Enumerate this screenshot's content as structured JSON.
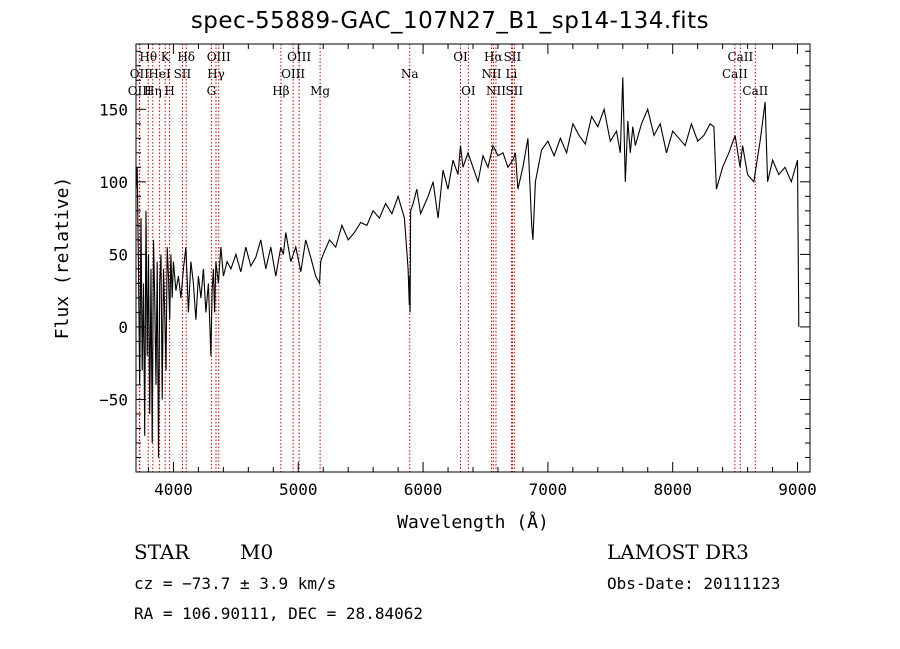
{
  "chart_data": {
    "type": "line",
    "title": "spec-55889-GAC_107N27_B1_sp14-134.fits",
    "xlabel": "Wavelength (Å)",
    "ylabel": "Flux (relative)",
    "xlim": [
      3700,
      9100
    ],
    "ylim": [
      -100,
      195
    ],
    "xticks": [
      4000,
      5000,
      6000,
      7000,
      8000,
      9000
    ],
    "yticks": [
      -50,
      0,
      50,
      100,
      150
    ],
    "ytick_labels": [
      "−50",
      "0",
      "50",
      "100",
      "150"
    ],
    "grid": false,
    "series": [
      {
        "name": "flux",
        "x": [
          3700,
          3710,
          3720,
          3730,
          3740,
          3750,
          3760,
          3770,
          3780,
          3790,
          3800,
          3810,
          3820,
          3830,
          3840,
          3850,
          3860,
          3870,
          3880,
          3890,
          3900,
          3910,
          3920,
          3930,
          3940,
          3950,
          3960,
          3970,
          3980,
          3990,
          4000,
          4020,
          4040,
          4060,
          4080,
          4100,
          4120,
          4140,
          4160,
          4180,
          4200,
          4220,
          4240,
          4260,
          4280,
          4300,
          4310,
          4320,
          4330,
          4340,
          4360,
          4380,
          4400,
          4430,
          4460,
          4500,
          4540,
          4580,
          4620,
          4660,
          4700,
          4740,
          4780,
          4820,
          4860,
          4880,
          4900,
          4940,
          4980,
          5020,
          5060,
          5100,
          5140,
          5170,
          5180,
          5200,
          5250,
          5300,
          5350,
          5400,
          5450,
          5500,
          5550,
          5600,
          5650,
          5700,
          5750,
          5800,
          5850,
          5880,
          5890,
          5893,
          5896,
          5900,
          5920,
          5950,
          5980,
          6000,
          6040,
          6080,
          6120,
          6160,
          6200,
          6240,
          6280,
          6300,
          6320,
          6360,
          6400,
          6440,
          6480,
          6520,
          6560,
          6600,
          6640,
          6680,
          6720,
          6740,
          6760,
          6800,
          6840,
          6870,
          6880,
          6900,
          6950,
          7000,
          7050,
          7100,
          7150,
          7200,
          7250,
          7300,
          7350,
          7400,
          7450,
          7500,
          7550,
          7580,
          7600,
          7620,
          7640,
          7660,
          7680,
          7700,
          7750,
          7800,
          7850,
          7900,
          7950,
          8000,
          8050,
          8100,
          8150,
          8200,
          8250,
          8300,
          8330,
          8350,
          8400,
          8450,
          8500,
          8540,
          8560,
          8600,
          8650,
          8700,
          8740,
          8760,
          8800,
          8850,
          8900,
          8950,
          9000,
          9010
        ],
        "y": [
          95,
          110,
          40,
          -40,
          75,
          -30,
          30,
          -75,
          80,
          -20,
          50,
          -60,
          40,
          -80,
          60,
          20,
          -40,
          45,
          -90,
          30,
          50,
          -50,
          40,
          10,
          -30,
          55,
          35,
          5,
          50,
          20,
          45,
          25,
          35,
          20,
          40,
          55,
          10,
          45,
          30,
          5,
          35,
          20,
          40,
          10,
          30,
          -20,
          25,
          40,
          10,
          45,
          30,
          55,
          35,
          45,
          40,
          50,
          38,
          55,
          42,
          48,
          60,
          40,
          55,
          35,
          55,
          50,
          65,
          45,
          55,
          38,
          60,
          48,
          35,
          30,
          45,
          50,
          60,
          55,
          70,
          60,
          65,
          72,
          70,
          80,
          75,
          85,
          78,
          90,
          75,
          40,
          15,
          35,
          10,
          80,
          85,
          95,
          78,
          82,
          90,
          100,
          75,
          108,
          95,
          115,
          105,
          125,
          110,
          120,
          110,
          100,
          118,
          110,
          125,
          118,
          120,
          110,
          115,
          120,
          95,
          110,
          130,
          70,
          60,
          100,
          122,
          128,
          118,
          130,
          120,
          140,
          132,
          126,
          145,
          138,
          150,
          128,
          135,
          120,
          172,
          100,
          142,
          120,
          138,
          125,
          140,
          150,
          132,
          140,
          120,
          135,
          130,
          125,
          140,
          128,
          132,
          140,
          138,
          95,
          110,
          120,
          132,
          110,
          125,
          105,
          100,
          128,
          155,
          100,
          115,
          105,
          110,
          100,
          115,
          0
        ]
      }
    ],
    "line_ids": [
      {
        "label": "Hθ",
        "wavelength": 3798,
        "row": 1
      },
      {
        "label": "OII",
        "wavelength": 3727,
        "row": 2
      },
      {
        "label": "OIII",
        "wavelength": 3730,
        "row": 3
      },
      {
        "label": "K",
        "wavelength": 3934,
        "row": 1
      },
      {
        "label": "HeI",
        "wavelength": 3889,
        "row": 2
      },
      {
        "label": "Hη",
        "wavelength": 3835,
        "row": 3
      },
      {
        "label": "Hδ",
        "wavelength": 4102,
        "row": 1
      },
      {
        "label": "SII",
        "wavelength": 4072,
        "row": 2
      },
      {
        "label": "H",
        "wavelength": 3969,
        "row": 3
      },
      {
        "label": "OIII",
        "wavelength": 4363,
        "row": 1
      },
      {
        "label": "Hγ",
        "wavelength": 4341,
        "row": 2
      },
      {
        "label": "G",
        "wavelength": 4304,
        "row": 3
      },
      {
        "label": "OIII",
        "wavelength": 5007,
        "row": 1
      },
      {
        "label": "OIII",
        "wavelength": 4959,
        "row": 2
      },
      {
        "label": "Hβ",
        "wavelength": 4861,
        "row": 3
      },
      {
        "label": "Mg",
        "wavelength": 5175,
        "row": 3
      },
      {
        "label": "Na",
        "wavelength": 5893,
        "row": 2
      },
      {
        "label": "OI",
        "wavelength": 6300,
        "row": 1
      },
      {
        "label": "OI",
        "wavelength": 6363,
        "row": 3
      },
      {
        "label": "Hα",
        "wavelength": 6563,
        "row": 1
      },
      {
        "label": "SII",
        "wavelength": 6716,
        "row": 1
      },
      {
        "label": "NII",
        "wavelength": 6548,
        "row": 2
      },
      {
        "label": "Li",
        "wavelength": 6708,
        "row": 2
      },
      {
        "label": "NII",
        "wavelength": 6584,
        "row": 3
      },
      {
        "label": "SII",
        "wavelength": 6731,
        "row": 3
      },
      {
        "label": "CaII",
        "wavelength": 8542,
        "row": 1
      },
      {
        "label": "CaII",
        "wavelength": 8498,
        "row": 2
      },
      {
        "label": "CaII",
        "wavelength": 8662,
        "row": 3
      }
    ],
    "line_marker_color": "#c00000",
    "line_color": "#000000"
  },
  "info": {
    "object_class": "STAR",
    "subclass": "M0",
    "survey": "LAMOST DR3",
    "redshift": "cz = −73.7 ± 3.9 km/s",
    "obs_date": "Obs-Date: 20111123",
    "coords": "RA = 106.90111, DEC =  28.84062"
  }
}
